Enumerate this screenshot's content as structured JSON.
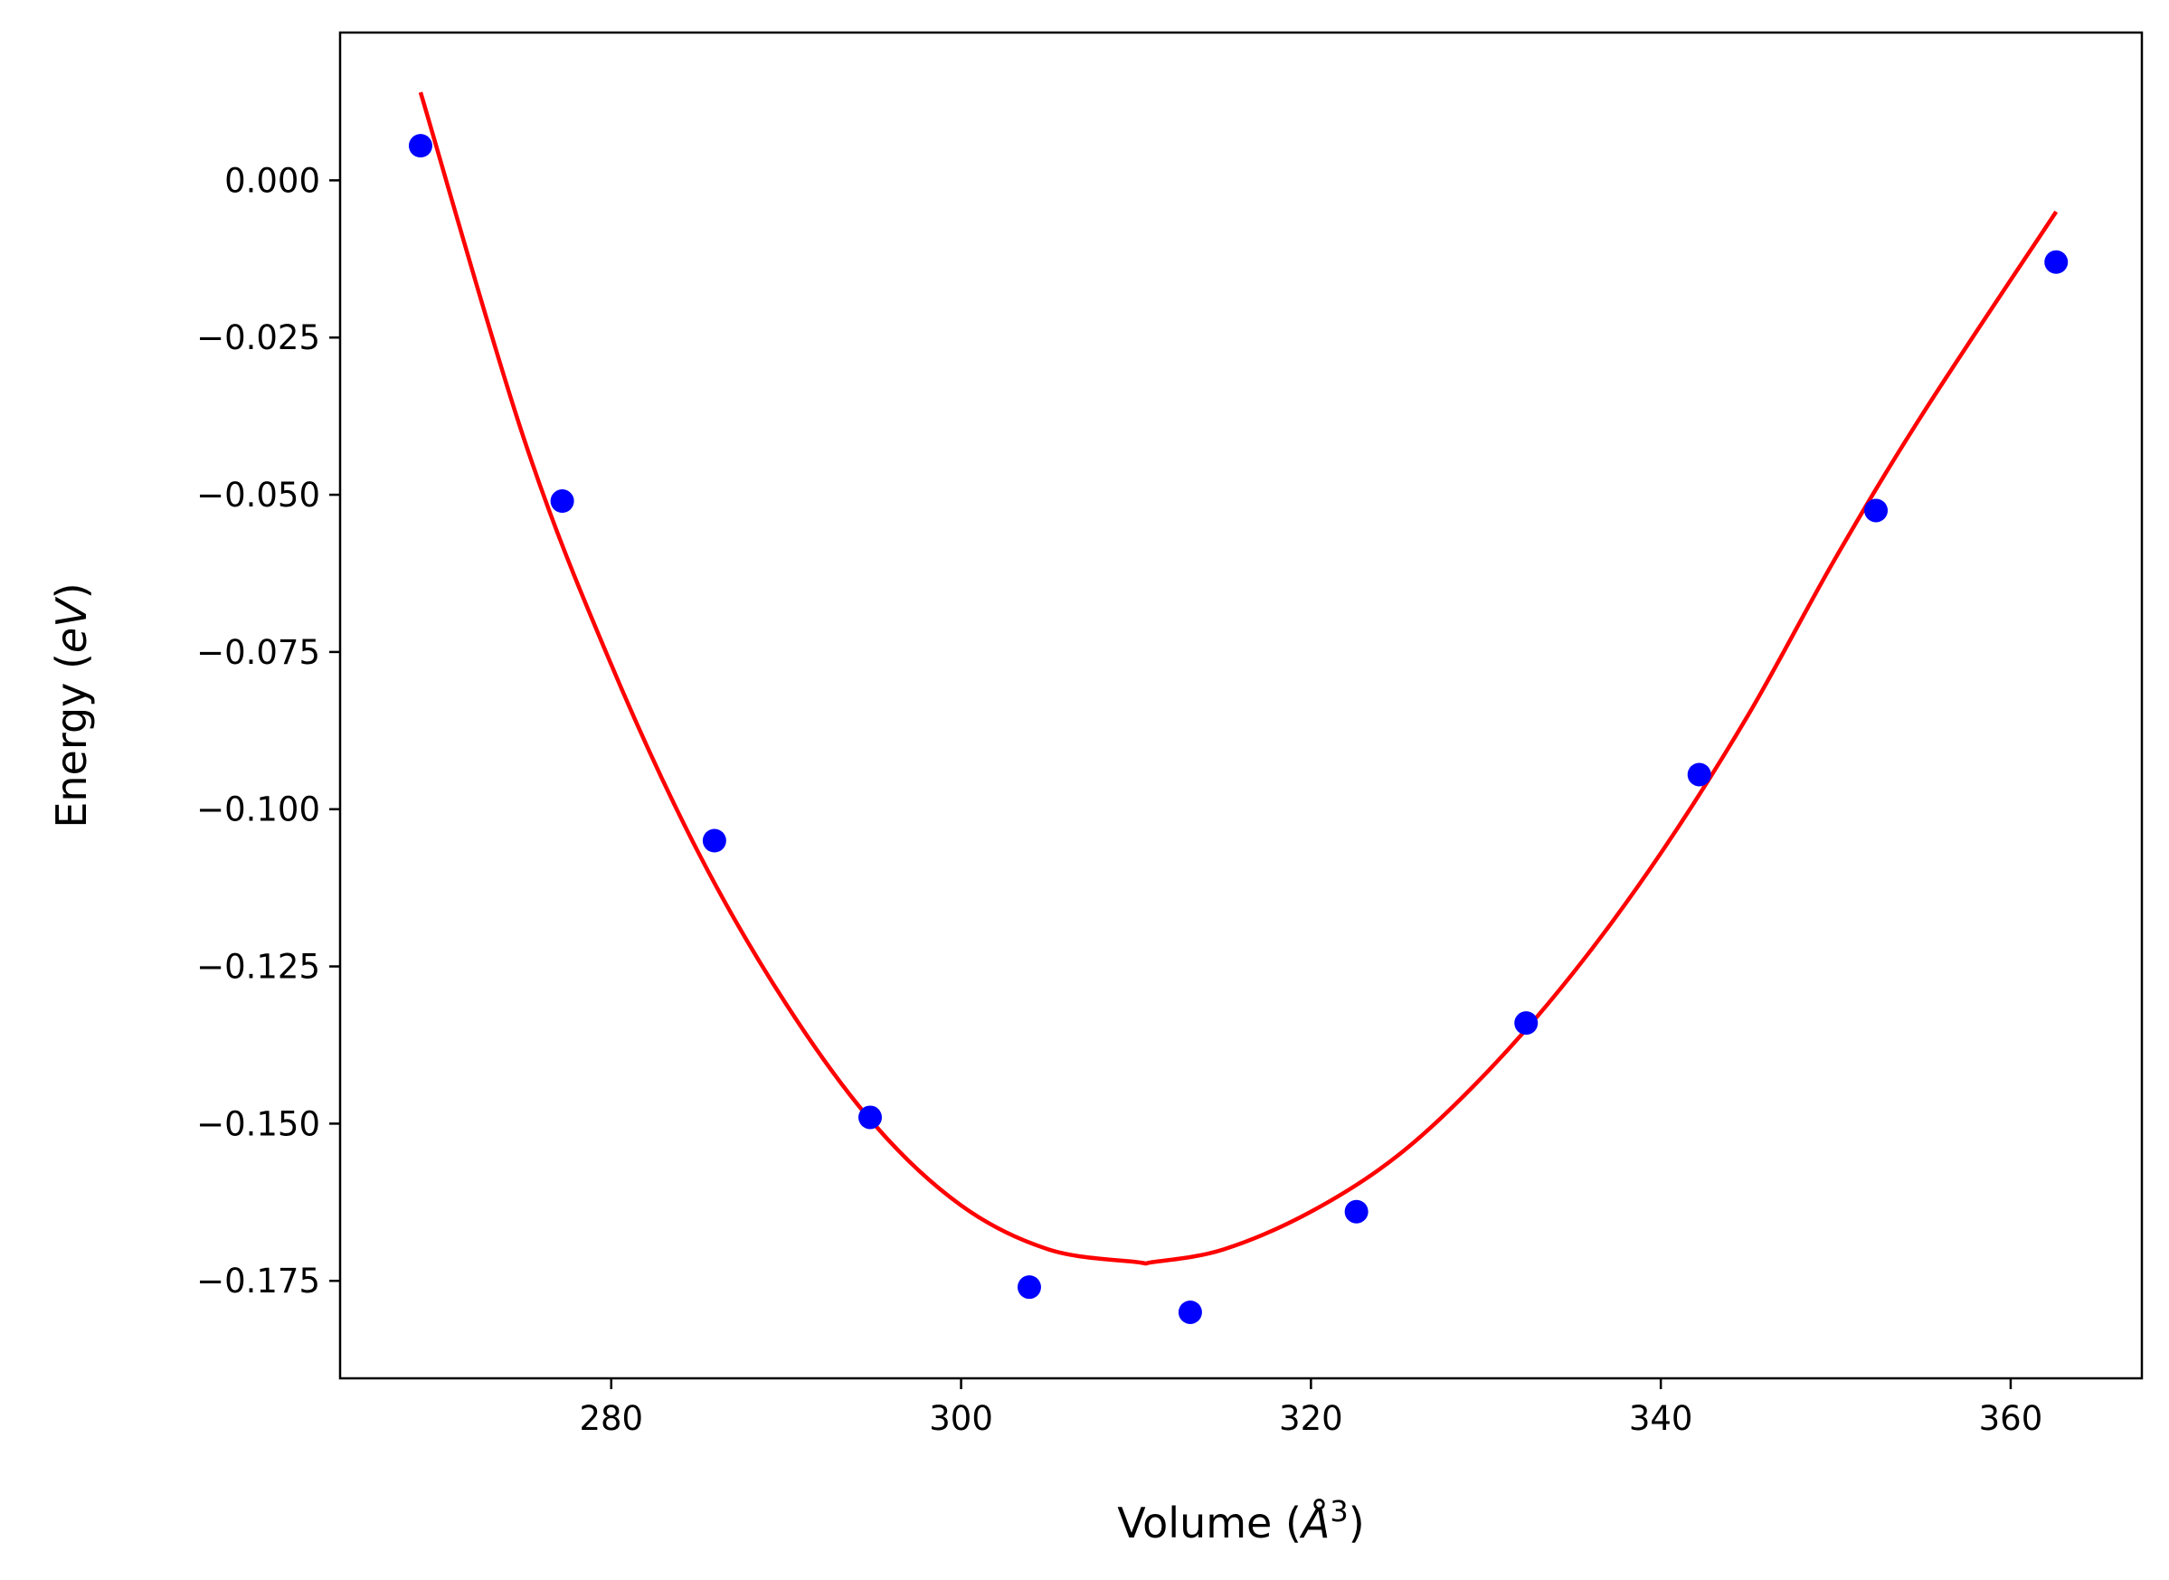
{
  "chart_data": {
    "type": "scatter",
    "title": "",
    "xlabel": "Volume",
    "xlabel_unit": "Å",
    "xlabel_unit_exponent": "3",
    "ylabel": "Energy",
    "ylabel_unit": "eV",
    "xlim": [
      264.5,
      367.5
    ],
    "ylim": [
      -0.1905,
      0.0235
    ],
    "xticks": [
      280,
      300,
      320,
      340,
      360
    ],
    "yticks": [
      0.0,
      -0.025,
      -0.05,
      -0.075,
      -0.1,
      -0.125,
      -0.15,
      -0.175
    ],
    "xtick_labels": [
      "280",
      "300",
      "320",
      "340",
      "360"
    ],
    "ytick_labels": [
      "0.000",
      "−0.025",
      "−0.050",
      "−0.075",
      "−0.100",
      "−0.125",
      "−0.150",
      "−0.175"
    ],
    "grid": false,
    "series": [
      {
        "kind": "points",
        "color": "#0000ff",
        "x": [
          269.1,
          277.2,
          285.9,
          294.8,
          303.9,
          313.1,
          322.6,
          332.3,
          342.2,
          352.3,
          362.6
        ],
        "y": [
          0.0055,
          -0.051,
          -0.105,
          -0.149,
          -0.176,
          -0.18,
          -0.164,
          -0.134,
          -0.0945,
          -0.0525,
          -0.013
        ]
      },
      {
        "kind": "fit-line",
        "color": "#ff0000",
        "x": [
          269.1,
          275.0,
          280.0,
          285.0,
          290.0,
          295.0,
          300.0,
          305.0,
          310.0,
          311.0,
          315.0,
          320.0,
          325.0,
          330.0,
          335.0,
          340.0,
          345.0,
          350.0,
          355.0,
          362.6
        ],
        "y": [
          0.014,
          -0.041,
          -0.077,
          -0.107,
          -0.131,
          -0.15,
          -0.163,
          -0.17,
          -0.172,
          -0.172,
          -0.17,
          -0.164,
          -0.155,
          -0.142,
          -0.126,
          -0.107,
          -0.085,
          -0.06,
          -0.037,
          -0.005
        ]
      }
    ]
  }
}
